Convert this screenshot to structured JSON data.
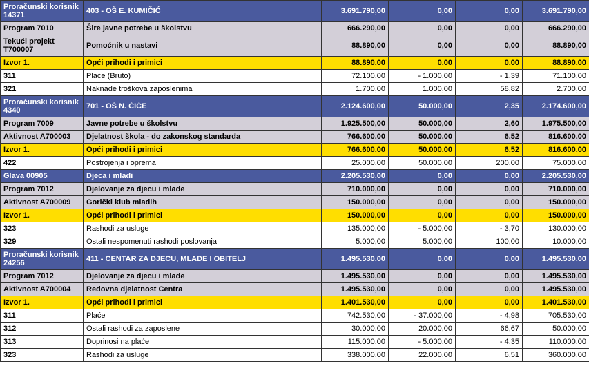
{
  "rows": [
    {
      "cls": "row-blue-dark tall",
      "label": "Proračunski korisnik 14371",
      "desc": "403 - OŠ E. KUMIČIĆ",
      "c1": "3.691.790,00",
      "c2": "0,00",
      "c3": "0,00",
      "c4": "3.691.790,00"
    },
    {
      "cls": "row-gray normal",
      "label": "Program  7010",
      "desc": "Šire javne potrebe u školstvu",
      "c1": "666.290,00",
      "c2": "0,00",
      "c3": "0,00",
      "c4": "666.290,00"
    },
    {
      "cls": "row-gray tall",
      "label": "Tekući projekt T700007",
      "desc": "Pomoćnik u nastavi",
      "c1": "88.890,00",
      "c2": "0,00",
      "c3": "0,00",
      "c4": "88.890,00"
    },
    {
      "cls": "row-yellow normal",
      "label": "Izvor   1.",
      "desc": "Opći prihodi i primici",
      "c1": "88.890,00",
      "c2": "0,00",
      "c3": "0,00",
      "c4": "88.890,00"
    },
    {
      "cls": "row-white normal",
      "label": "311",
      "desc": "Plaće (Bruto)",
      "c1": "72.100,00",
      "c2": "- 1.000,00",
      "c3": "- 1,39",
      "c4": "71.100,00"
    },
    {
      "cls": "row-white normal",
      "label": "321",
      "desc": "Naknade troškova zaposlenima",
      "c1": "1.700,00",
      "c2": "1.000,00",
      "c3": "58,82",
      "c4": "2.700,00"
    },
    {
      "cls": "row-blue-dark tall",
      "label": "Proračunski korisnik 4340",
      "desc": "701 - OŠ N. ČIČE",
      "c1": "2.124.600,00",
      "c2": "50.000,00",
      "c3": "2,35",
      "c4": "2.174.600,00"
    },
    {
      "cls": "row-gray normal",
      "label": "Program  7009",
      "desc": "Javne potrebe u školstvu",
      "c1": "1.925.500,00",
      "c2": "50.000,00",
      "c3": "2,60",
      "c4": "1.975.500,00"
    },
    {
      "cls": "row-gray normal",
      "label": "Aktivnost  A700003",
      "desc": "Djelatnost škola - do zakonskog standarda",
      "c1": "766.600,00",
      "c2": "50.000,00",
      "c3": "6,52",
      "c4": "816.600,00"
    },
    {
      "cls": "row-yellow normal",
      "label": "Izvor   1.",
      "desc": "Opći prihodi i primici",
      "c1": "766.600,00",
      "c2": "50.000,00",
      "c3": "6,52",
      "c4": "816.600,00"
    },
    {
      "cls": "row-white normal",
      "label": "422",
      "desc": "Postrojenja i oprema",
      "c1": "25.000,00",
      "c2": "50.000,00",
      "c3": "200,00",
      "c4": "75.000,00"
    },
    {
      "cls": "row-blue-dark normal",
      "label": "Glava  00905",
      "desc": "Djeca i mladi",
      "c1": "2.205.530,00",
      "c2": "0,00",
      "c3": "0,00",
      "c4": "2.205.530,00"
    },
    {
      "cls": "row-gray normal",
      "label": "Program  7012",
      "desc": "Djelovanje za djecu i mlade",
      "c1": "710.000,00",
      "c2": "0,00",
      "c3": "0,00",
      "c4": "710.000,00"
    },
    {
      "cls": "row-gray normal",
      "label": "Aktivnost  A700009",
      "desc": "Gorički klub mladih",
      "c1": "150.000,00",
      "c2": "0,00",
      "c3": "0,00",
      "c4": "150.000,00"
    },
    {
      "cls": "row-yellow normal",
      "label": "Izvor   1.",
      "desc": "Opći prihodi i primici",
      "c1": "150.000,00",
      "c2": "0,00",
      "c3": "0,00",
      "c4": "150.000,00"
    },
    {
      "cls": "row-white normal",
      "label": "323",
      "desc": "Rashodi za usluge",
      "c1": "135.000,00",
      "c2": "- 5.000,00",
      "c3": "- 3,70",
      "c4": "130.000,00"
    },
    {
      "cls": "row-white normal",
      "label": "329",
      "desc": "Ostali nespomenuti rashodi poslovanja",
      "c1": "5.000,00",
      "c2": "5.000,00",
      "c3": "100,00",
      "c4": "10.000,00"
    },
    {
      "cls": "row-blue-dark tall",
      "label": "Proračunski korisnik 24256",
      "desc": "411 - CENTAR ZA DJECU, MLADE I OBITELJ",
      "c1": "1.495.530,00",
      "c2": "0,00",
      "c3": "0,00",
      "c4": "1.495.530,00"
    },
    {
      "cls": "row-gray normal",
      "label": "Program  7012",
      "desc": "Djelovanje za djecu i mlade",
      "c1": "1.495.530,00",
      "c2": "0,00",
      "c3": "0,00",
      "c4": "1.495.530,00"
    },
    {
      "cls": "row-gray normal",
      "label": "Aktivnost  A700004",
      "desc": "Redovna djelatnost Centra",
      "c1": "1.495.530,00",
      "c2": "0,00",
      "c3": "0,00",
      "c4": "1.495.530,00"
    },
    {
      "cls": "row-yellow normal",
      "label": "Izvor   1.",
      "desc": "Opći prihodi i primici",
      "c1": "1.401.530,00",
      "c2": "0,00",
      "c3": "0,00",
      "c4": "1.401.530,00"
    },
    {
      "cls": "row-white normal",
      "label": "311",
      "desc": "Plaće",
      "c1": "742.530,00",
      "c2": "- 37.000,00",
      "c3": "- 4,98",
      "c4": "705.530,00"
    },
    {
      "cls": "row-white normal",
      "label": "312",
      "desc": "Ostali rashodi za zaposlene",
      "c1": "30.000,00",
      "c2": "20.000,00",
      "c3": "66,67",
      "c4": "50.000,00"
    },
    {
      "cls": "row-white normal",
      "label": "313",
      "desc": "Doprinosi na plaće",
      "c1": "115.000,00",
      "c2": "- 5.000,00",
      "c3": "- 4,35",
      "c4": "110.000,00"
    },
    {
      "cls": "row-white normal",
      "label": "323",
      "desc": "Rashodi za usluge",
      "c1": "338.000,00",
      "c2": "22.000,00",
      "c3": "6,51",
      "c4": "360.000,00"
    }
  ]
}
